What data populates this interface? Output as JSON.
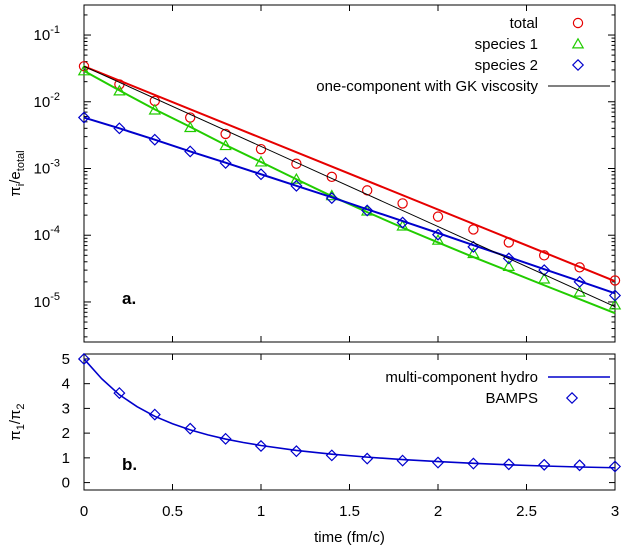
{
  "chart_data": [
    {
      "id": "a",
      "type": "scatter",
      "panel_label": "a.",
      "ylabel_main": "π",
      "ylabel_sub1": "i",
      "ylabel_mid": "/e",
      "ylabel_sub2": "total",
      "yscale": "log",
      "xlim": [
        0,
        3
      ],
      "ylim_exp": [
        -5.6,
        -0.55
      ],
      "x_ticks": [
        0,
        0.5,
        1,
        1.5,
        2,
        2.5,
        3
      ],
      "y_tick_exponents": [
        "-1",
        "-2",
        "-3",
        "-4",
        "-5"
      ],
      "y_tick_base": "10",
      "legend_position": "top-right",
      "series": [
        {
          "name": "total",
          "color": "#e60000",
          "marker": "circle",
          "x": [
            0,
            0.2,
            0.4,
            0.6,
            0.8,
            1.0,
            1.2,
            1.4,
            1.6,
            1.8,
            2.0,
            2.2,
            2.4,
            2.6,
            2.8,
            3.0
          ],
          "y": [
            0.034,
            0.0182,
            0.0103,
            0.0058,
            0.0033,
            0.00195,
            0.00118,
            0.00075,
            0.00047,
            0.0003,
            0.00019,
            0.000122,
            7.8e-05,
            5e-05,
            3.3e-05,
            2.1e-05
          ],
          "curve_x": [
            0,
            3
          ],
          "curve_y": [
            0.034,
            2.05e-05
          ]
        },
        {
          "name": "species 1",
          "color": "#22cc00",
          "marker": "triangle",
          "x": [
            0,
            0.2,
            0.4,
            0.6,
            0.8,
            1.0,
            1.2,
            1.4,
            1.6,
            1.8,
            2.0,
            2.2,
            2.4,
            2.6,
            2.8,
            3.0
          ],
          "y": [
            0.029,
            0.0145,
            0.0075,
            0.0041,
            0.0022,
            0.00125,
            0.00069,
            0.00039,
            0.00023,
            0.000137,
            8.4e-05,
            5.3e-05,
            3.4e-05,
            2.2e-05,
            1.4e-05,
            9e-06
          ],
          "curve_x": [
            0,
            0.2,
            0.4,
            0.6,
            0.8,
            1.0,
            1.2,
            1.4,
            1.6,
            1.8,
            2.0,
            2.2,
            2.4,
            2.6,
            2.8,
            3.0
          ],
          "curve_y": [
            0.029,
            0.0148,
            0.0077,
            0.0042,
            0.00225,
            0.00125,
            0.00069,
            0.000385,
            0.000222,
            0.00013,
            7.8e-05,
            4.7e-05,
            2.9e-05,
            1.78e-05,
            1.1e-05,
            6.8e-06
          ]
        },
        {
          "name": "species 2",
          "color": "#0000cc",
          "marker": "diamond",
          "x": [
            0,
            0.2,
            0.4,
            0.6,
            0.8,
            1.0,
            1.2,
            1.4,
            1.6,
            1.8,
            2.0,
            2.2,
            2.4,
            2.6,
            2.8,
            3.0
          ],
          "y": [
            0.0058,
            0.004,
            0.0027,
            0.0018,
            0.00121,
            0.00082,
            0.00055,
            0.00036,
            0.000235,
            0.000155,
            0.000102,
            6.7e-05,
            4.5e-05,
            3e-05,
            2e-05,
            1.25e-05
          ],
          "curve_x": [
            0,
            0.2,
            0.4,
            0.6,
            0.8,
            1.0,
            1.2,
            1.4,
            1.6,
            1.8,
            2.0,
            2.2,
            2.4,
            2.6,
            2.8,
            3.0
          ],
          "curve_y": [
            0.0058,
            0.004,
            0.0027,
            0.0018,
            0.00122,
            0.00082,
            0.00055,
            0.00037,
            0.000245,
            0.000163,
            0.000108,
            7.1e-05,
            4.7e-05,
            3.1e-05,
            2.05e-05,
            1.35e-05
          ]
        },
        {
          "name": "one-component with GK viscosity",
          "color": "#000000",
          "marker": "none",
          "curve_x": [
            0,
            3
          ],
          "curve_y": [
            0.034,
            8.5e-06
          ]
        }
      ]
    },
    {
      "id": "b",
      "type": "scatter",
      "panel_label": "b.",
      "ylabel_main": "π",
      "ylabel_sub1": "1",
      "ylabel_mid": "/π",
      "ylabel_sub2": "2",
      "xlabel": "time (fm/c)",
      "xlim": [
        0,
        3
      ],
      "ylim": [
        -0.3,
        5.2
      ],
      "x_ticks": [
        0,
        0.5,
        1,
        1.5,
        2,
        2.5,
        3
      ],
      "x_tick_labels": [
        "0",
        "0.5",
        "1",
        "1.5",
        "2",
        "2.5",
        "3"
      ],
      "y_ticks": [
        0,
        1,
        2,
        3,
        4,
        5
      ],
      "legend_position": "top-right",
      "series": [
        {
          "name": "multi-component hydro",
          "color": "#0000cc",
          "marker": "none",
          "curve_x": [
            0,
            0.1,
            0.2,
            0.3,
            0.4,
            0.5,
            0.6,
            0.7,
            0.8,
            0.9,
            1.0,
            1.2,
            1.4,
            1.6,
            1.8,
            2.0,
            2.2,
            2.4,
            2.6,
            2.8,
            3.0
          ],
          "curve_y": [
            5.0,
            4.2,
            3.55,
            3.07,
            2.68,
            2.38,
            2.13,
            1.93,
            1.76,
            1.62,
            1.5,
            1.3,
            1.15,
            1.03,
            0.93,
            0.85,
            0.78,
            0.72,
            0.67,
            0.63,
            0.6
          ]
        },
        {
          "name": "BAMPS",
          "color": "#0000cc",
          "marker": "diamond",
          "x": [
            0,
            0.2,
            0.4,
            0.6,
            0.8,
            1.0,
            1.2,
            1.4,
            1.6,
            1.8,
            2.0,
            2.2,
            2.4,
            2.6,
            2.8,
            3.0
          ],
          "y": [
            5.0,
            3.62,
            2.75,
            2.18,
            1.77,
            1.48,
            1.27,
            1.1,
            0.97,
            0.89,
            0.81,
            0.77,
            0.74,
            0.72,
            0.7,
            0.65
          ]
        }
      ]
    }
  ]
}
